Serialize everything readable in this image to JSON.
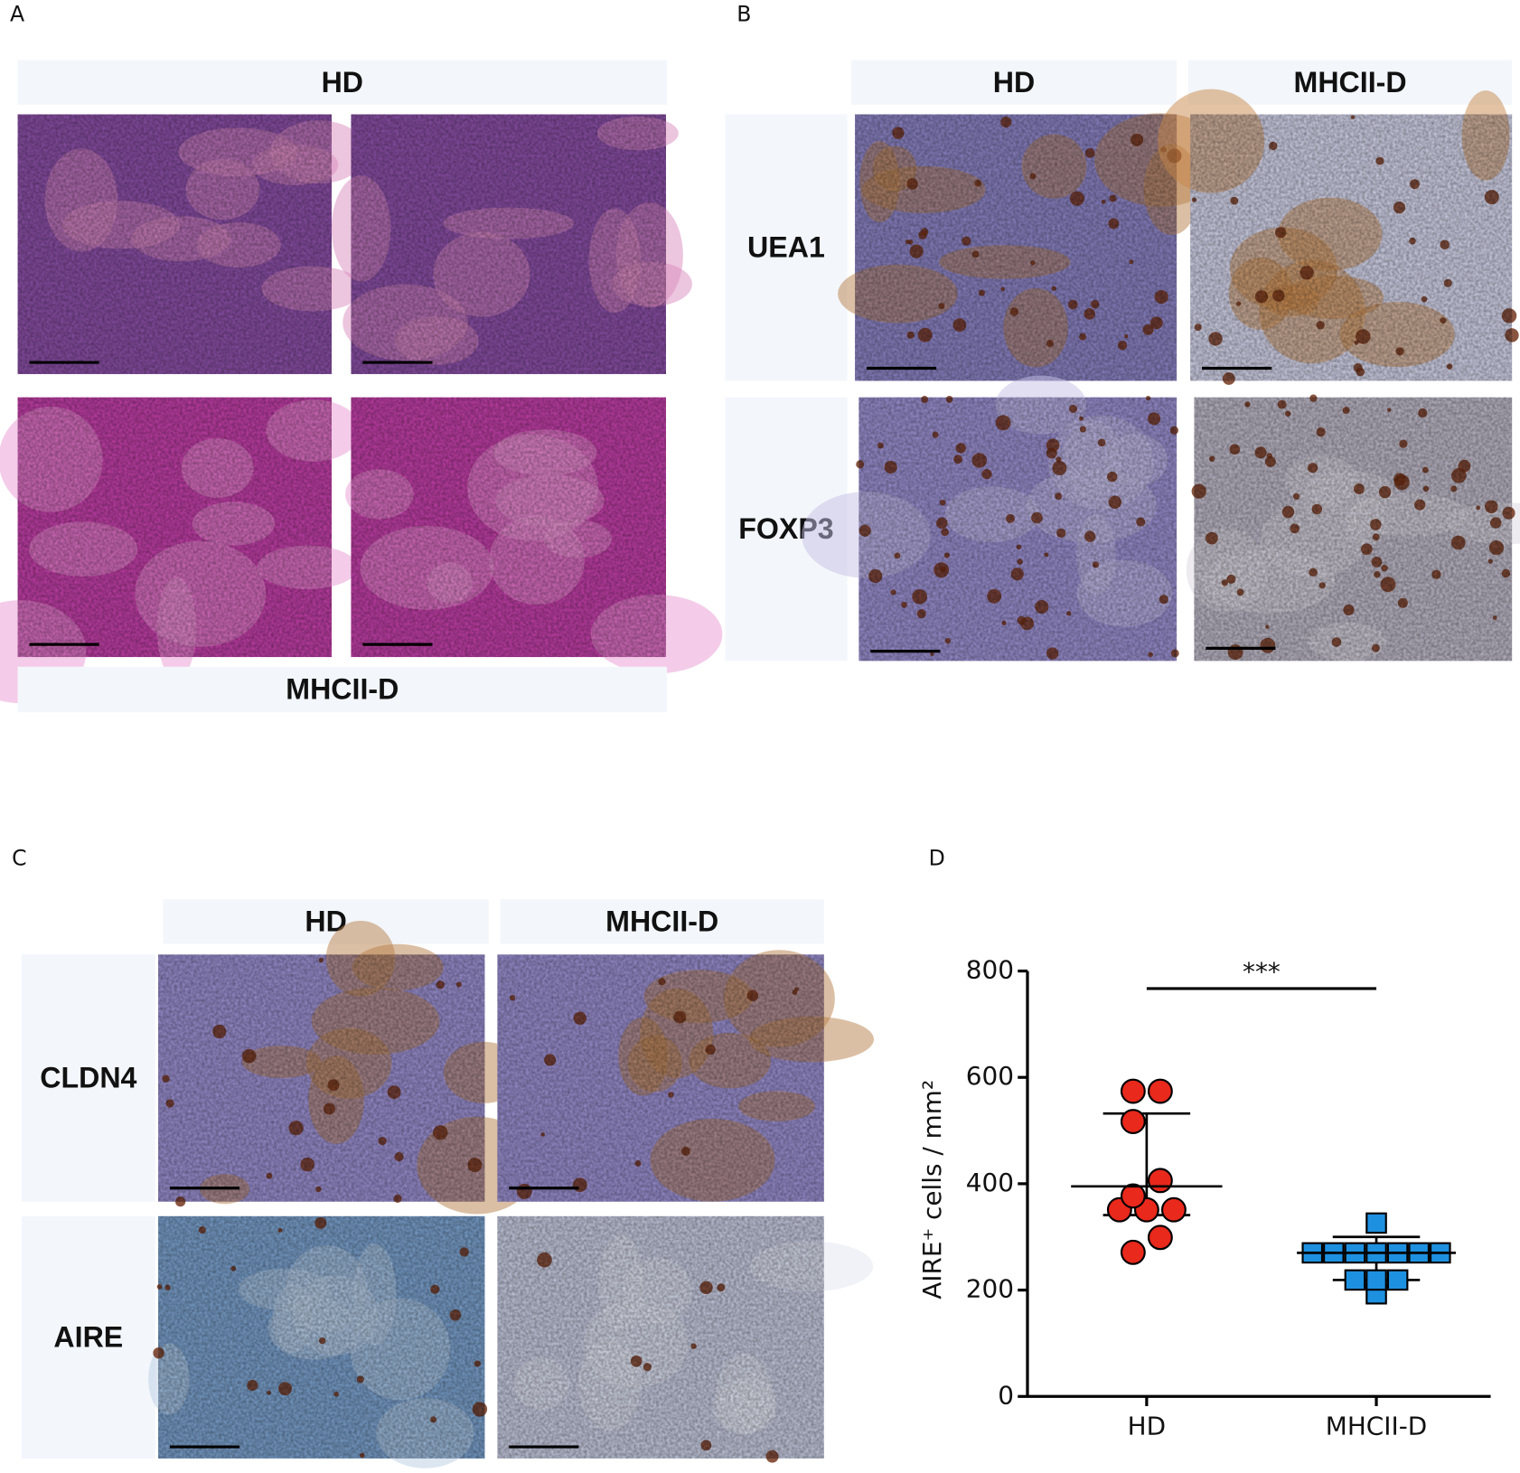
{
  "panels": {
    "A": {
      "letter": "A",
      "header": "HD",
      "footer": "MHCII-D"
    },
    "B": {
      "letter": "B",
      "columns": [
        "HD",
        "MHCII-D"
      ],
      "rows": [
        "UEA1",
        "FOXP3"
      ]
    },
    "C": {
      "letter": "C",
      "columns": [
        "HD",
        "MHCII-D"
      ],
      "rows": [
        "CLDN4",
        "AIRE"
      ]
    },
    "D": {
      "letter": "D"
    }
  },
  "chart_data": {
    "type": "strip",
    "y_label": "AIRE⁺ cells / mm²",
    "categories": [
      "HD",
      "MHCII-D"
    ],
    "ylim": [
      0,
      800
    ],
    "yticks": [
      0,
      200,
      400,
      600,
      800
    ],
    "series": [
      {
        "marker": "circle",
        "color": "#e8291c",
        "values": [
          574,
          574,
          517,
          406,
          377,
          351,
          351,
          351,
          299,
          271
        ],
        "center": 395,
        "error": [
          341,
          532
        ]
      },
      {
        "marker": "square",
        "color": "#1e90e0",
        "values": [
          326,
          270,
          270,
          270,
          270,
          270,
          270,
          270,
          219,
          219,
          219,
          193
        ],
        "center": 270,
        "error": [
          219,
          300
        ]
      }
    ],
    "annotations": [
      {
        "text": "***",
        "y": 767
      }
    ]
  }
}
